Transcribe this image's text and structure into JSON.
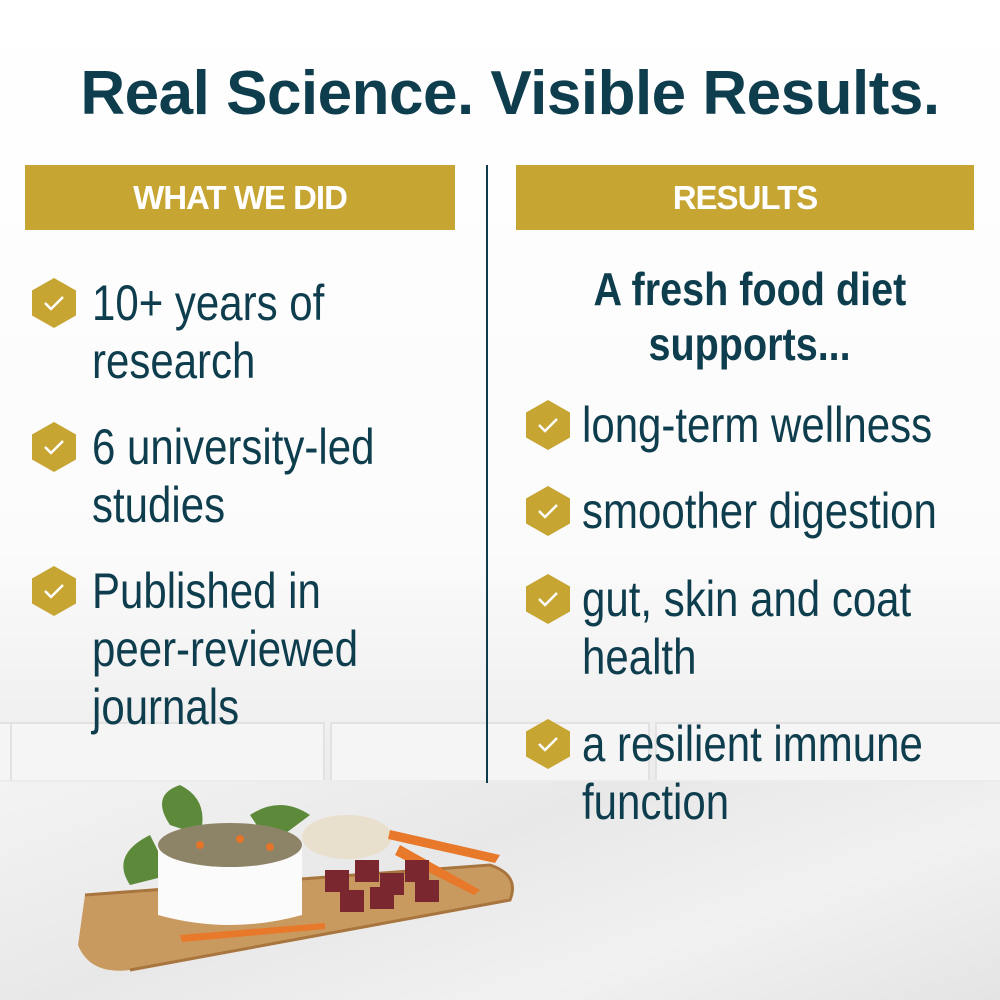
{
  "title": "Real Science. Visible Results.",
  "left": {
    "header": "WHAT WE DID",
    "items": [
      [
        "10+ years of",
        "research"
      ],
      [
        "6 university-led",
        "studies"
      ],
      [
        "Published in",
        "peer-reviewed",
        "journals"
      ]
    ]
  },
  "right": {
    "header": "RESULTS",
    "lead": [
      "A fresh food diet",
      "supports..."
    ],
    "items": [
      [
        "long-term wellness"
      ],
      [
        "smoother digestion"
      ],
      [
        "gut, skin and coat",
        "health"
      ],
      [
        "a resilient immune",
        "function"
      ]
    ]
  },
  "colors": {
    "navy": "#0e3d4d",
    "gold": "#c6a532"
  },
  "icons": {
    "bullet": "hexagon-check-icon"
  }
}
